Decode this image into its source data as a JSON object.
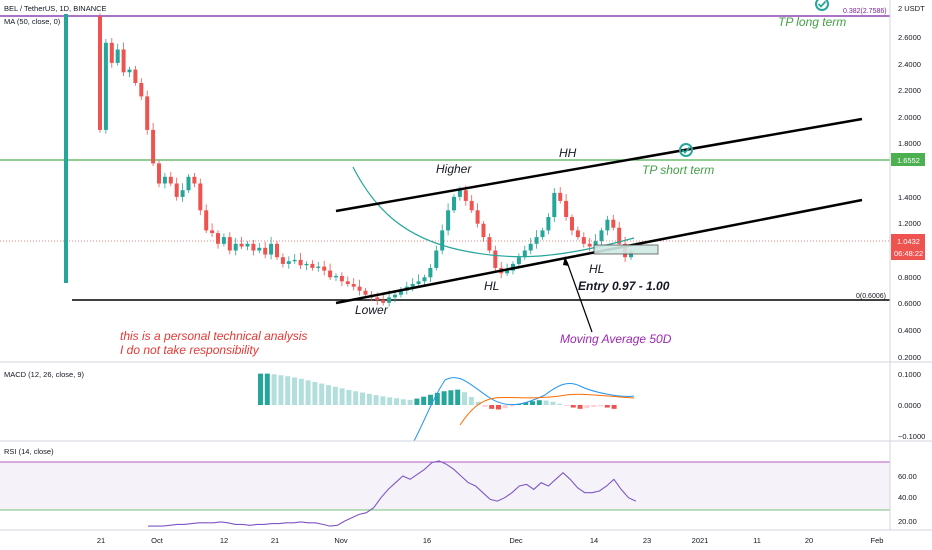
{
  "header": {
    "symbol": "BEL / TetherUS, 1D, BINANCE",
    "ma_label": "MA (50, close, 0)",
    "macd_label": "MACD (12, 26, close, 9)",
    "rsi_label": "RSI (14, close)"
  },
  "price_axis": {
    "unit": "USDT",
    "ticks": [
      "2.6000",
      "2.4000",
      "2.2000",
      "2.0000",
      "1.8000",
      "1.6000",
      "1.4000",
      "1.2000",
      "1.0000",
      "0.8000",
      "0.6000",
      "0.4000",
      "0.2000"
    ],
    "last_price": "1.0432",
    "countdown": "06:48:22",
    "tp_badge": "1.6552"
  },
  "macd_axis": {
    "ticks": [
      "0.1000",
      "0.0000",
      "−0.1000"
    ]
  },
  "rsi_axis": {
    "ticks": [
      "60.00",
      "40.00",
      "20.00"
    ]
  },
  "time_axis": {
    "ticks": [
      "21",
      "Oct",
      "12",
      "21",
      "Nov",
      "16",
      "Dec",
      "14",
      "23",
      "2021",
      "11",
      "20",
      "Feb"
    ]
  },
  "fib_levels": {
    "top": "0.382(2.7586)",
    "bottom": "0(0.6006)"
  },
  "annotations": {
    "tp_long": "TP long term",
    "tp_short": "TP short term",
    "higher": "Higher",
    "hh": "HH",
    "hl_left": "HL",
    "hl_right": "HL",
    "entry": "Entry 0.97 - 1.00",
    "lower": "Lower",
    "ma_note": "Moving Average 50D",
    "disclaimer_1": "this is a personal technical analysis",
    "disclaimer_2": "I do not take responsibility"
  },
  "colors": {
    "up": "#26a69a",
    "down": "#ef5350",
    "ma": "#26a69a",
    "fib_top": "#7b1fa2",
    "tp_line": "#4caf50",
    "annotation_green": "#43a047",
    "annotation_purple": "#9c27b0",
    "disclaimer": "#e53935",
    "rsi": "#7e57c2",
    "macd_line": "#2196f3",
    "signal_line": "#ff6d00"
  },
  "chart_data": {
    "type": "candlestick",
    "title": "BEL / TetherUS, 1D, BINANCE",
    "ylim": [
      0.15,
      2.85
    ],
    "closes": [
      1.95,
      2.6,
      2.45,
      2.55,
      2.38,
      2.4,
      2.3,
      2.2,
      1.95,
      1.7,
      1.55,
      1.6,
      1.55,
      1.45,
      1.5,
      1.6,
      1.55,
      1.35,
      1.2,
      1.18,
      1.1,
      1.15,
      1.05,
      1.1,
      1.08,
      1.1,
      1.05,
      1.07,
      1.02,
      1.1,
      1.0,
      0.95,
      0.97,
      0.98,
      0.94,
      0.95,
      0.92,
      0.93,
      0.9,
      0.85,
      0.86,
      0.82,
      0.8,
      0.78,
      0.75,
      0.72,
      0.7,
      0.68,
      0.66,
      0.7,
      0.72,
      0.75,
      0.78,
      0.8,
      0.82,
      0.85,
      0.92,
      1.05,
      1.2,
      1.35,
      1.45,
      1.5,
      1.42,
      1.35,
      1.25,
      1.15,
      1.05,
      0.92,
      0.88,
      0.9,
      0.95,
      1.0,
      1.05,
      1.1,
      1.15,
      1.2,
      1.3,
      1.48,
      1.42,
      1.3,
      1.2,
      1.15,
      1.1,
      1.08,
      1.12,
      1.2,
      1.28,
      1.22,
      1.1,
      1.0,
      1.0432
    ],
    "ma50_label": "MA (50, close, 0)",
    "macd": [
      0.098,
      0.098,
      0.095,
      0.09,
      0.085,
      0.078,
      0.07,
      0.063,
      0.058,
      0.053,
      0.048,
      0.043,
      0.038,
      0.034,
      0.03,
      0.026,
      0.022,
      0.018,
      0.014,
      0.01,
      0.006,
      0.004,
      0.002,
      0.0,
      0.01,
      0.03,
      0.05,
      0.06,
      0.065,
      0.06,
      0.05,
      0.035,
      0.02,
      0.01,
      0.005,
      0.003,
      0.002,
      0.002,
      0.003,
      0.005,
      0.008,
      0.012,
      0.016,
      0.02,
      0.018,
      0.01,
      0.0,
      -0.01,
      -0.01,
      -0.008,
      -0.006,
      -0.005
    ],
    "rsi": [
      30,
      30,
      30,
      30.5,
      31,
      31,
      31.5,
      32,
      32,
      32,
      32.5,
      32,
      31,
      31,
      30.5,
      31,
      31,
      31.5,
      31.5,
      32,
      32,
      32.5,
      32,
      32,
      31,
      30,
      30.5,
      33,
      35,
      37,
      38,
      41,
      47,
      52,
      56,
      60,
      58,
      61,
      64,
      68,
      69,
      67,
      64,
      60,
      56,
      54,
      50,
      46,
      45,
      47,
      50,
      54,
      55,
      52,
      56,
      54,
      58,
      62,
      58,
      53,
      50,
      50,
      51,
      54,
      58,
      52,
      47,
      45
    ],
    "levels": {
      "tp_long_term": 2.7586,
      "tp_short_term": 1.6552,
      "support": 0.6006,
      "entry_low": 0.97,
      "entry_high": 1.0
    }
  }
}
